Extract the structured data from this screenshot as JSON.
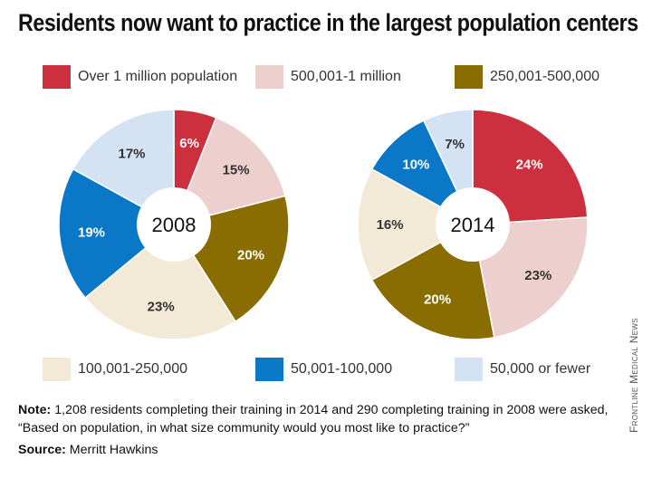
{
  "title": "Residents now want to practice in the largest population centers",
  "legend": [
    {
      "label": "Over 1 million population",
      "color": "#cc2f3e"
    },
    {
      "label": "500,001-1 million",
      "color": "#edcfcd"
    },
    {
      "label": "250,001-500,000",
      "color": "#8a6d00"
    },
    {
      "label": "100,001-250,000",
      "color": "#f2e9d6"
    },
    {
      "label": "50,001-100,000",
      "color": "#0a78c6"
    },
    {
      "label": "50,000 or fewer",
      "color": "#d3e3f4"
    }
  ],
  "chart_data": [
    {
      "type": "pie",
      "center_label": "2008",
      "categories": [
        "Over 1 million population",
        "500,001-1 million",
        "250,001-500,000",
        "100,001-250,000",
        "50,001-100,000",
        "50,000 or fewer"
      ],
      "values": [
        6,
        15,
        20,
        23,
        19,
        17
      ],
      "labels": [
        "6%",
        "15%",
        "20%",
        "23%",
        "19%",
        "17%"
      ],
      "label_colors": [
        "#ffffff",
        "#333333",
        "#ffffff",
        "#333333",
        "#ffffff",
        "#333333"
      ]
    },
    {
      "type": "pie",
      "center_label": "2014",
      "categories": [
        "Over 1 million population",
        "500,001-1 million",
        "250,001-500,000",
        "100,001-250,000",
        "50,001-100,000",
        "50,000 or fewer"
      ],
      "values": [
        24,
        23,
        20,
        16,
        10,
        7
      ],
      "labels": [
        "24%",
        "23%",
        "20%",
        "16%",
        "10%",
        "7%"
      ],
      "label_colors": [
        "#ffffff",
        "#333333",
        "#ffffff",
        "#333333",
        "#ffffff",
        "#333333"
      ]
    }
  ],
  "note": {
    "label": "Note:",
    "text": "1,208 residents completing their training in 2014 and 290 completing training in 2008 were asked, “Based on population, in what size community would you most like to practice?”"
  },
  "source": {
    "label": "Source:",
    "text": "Merritt Hawkins"
  },
  "credit": "Frontline Medical News"
}
